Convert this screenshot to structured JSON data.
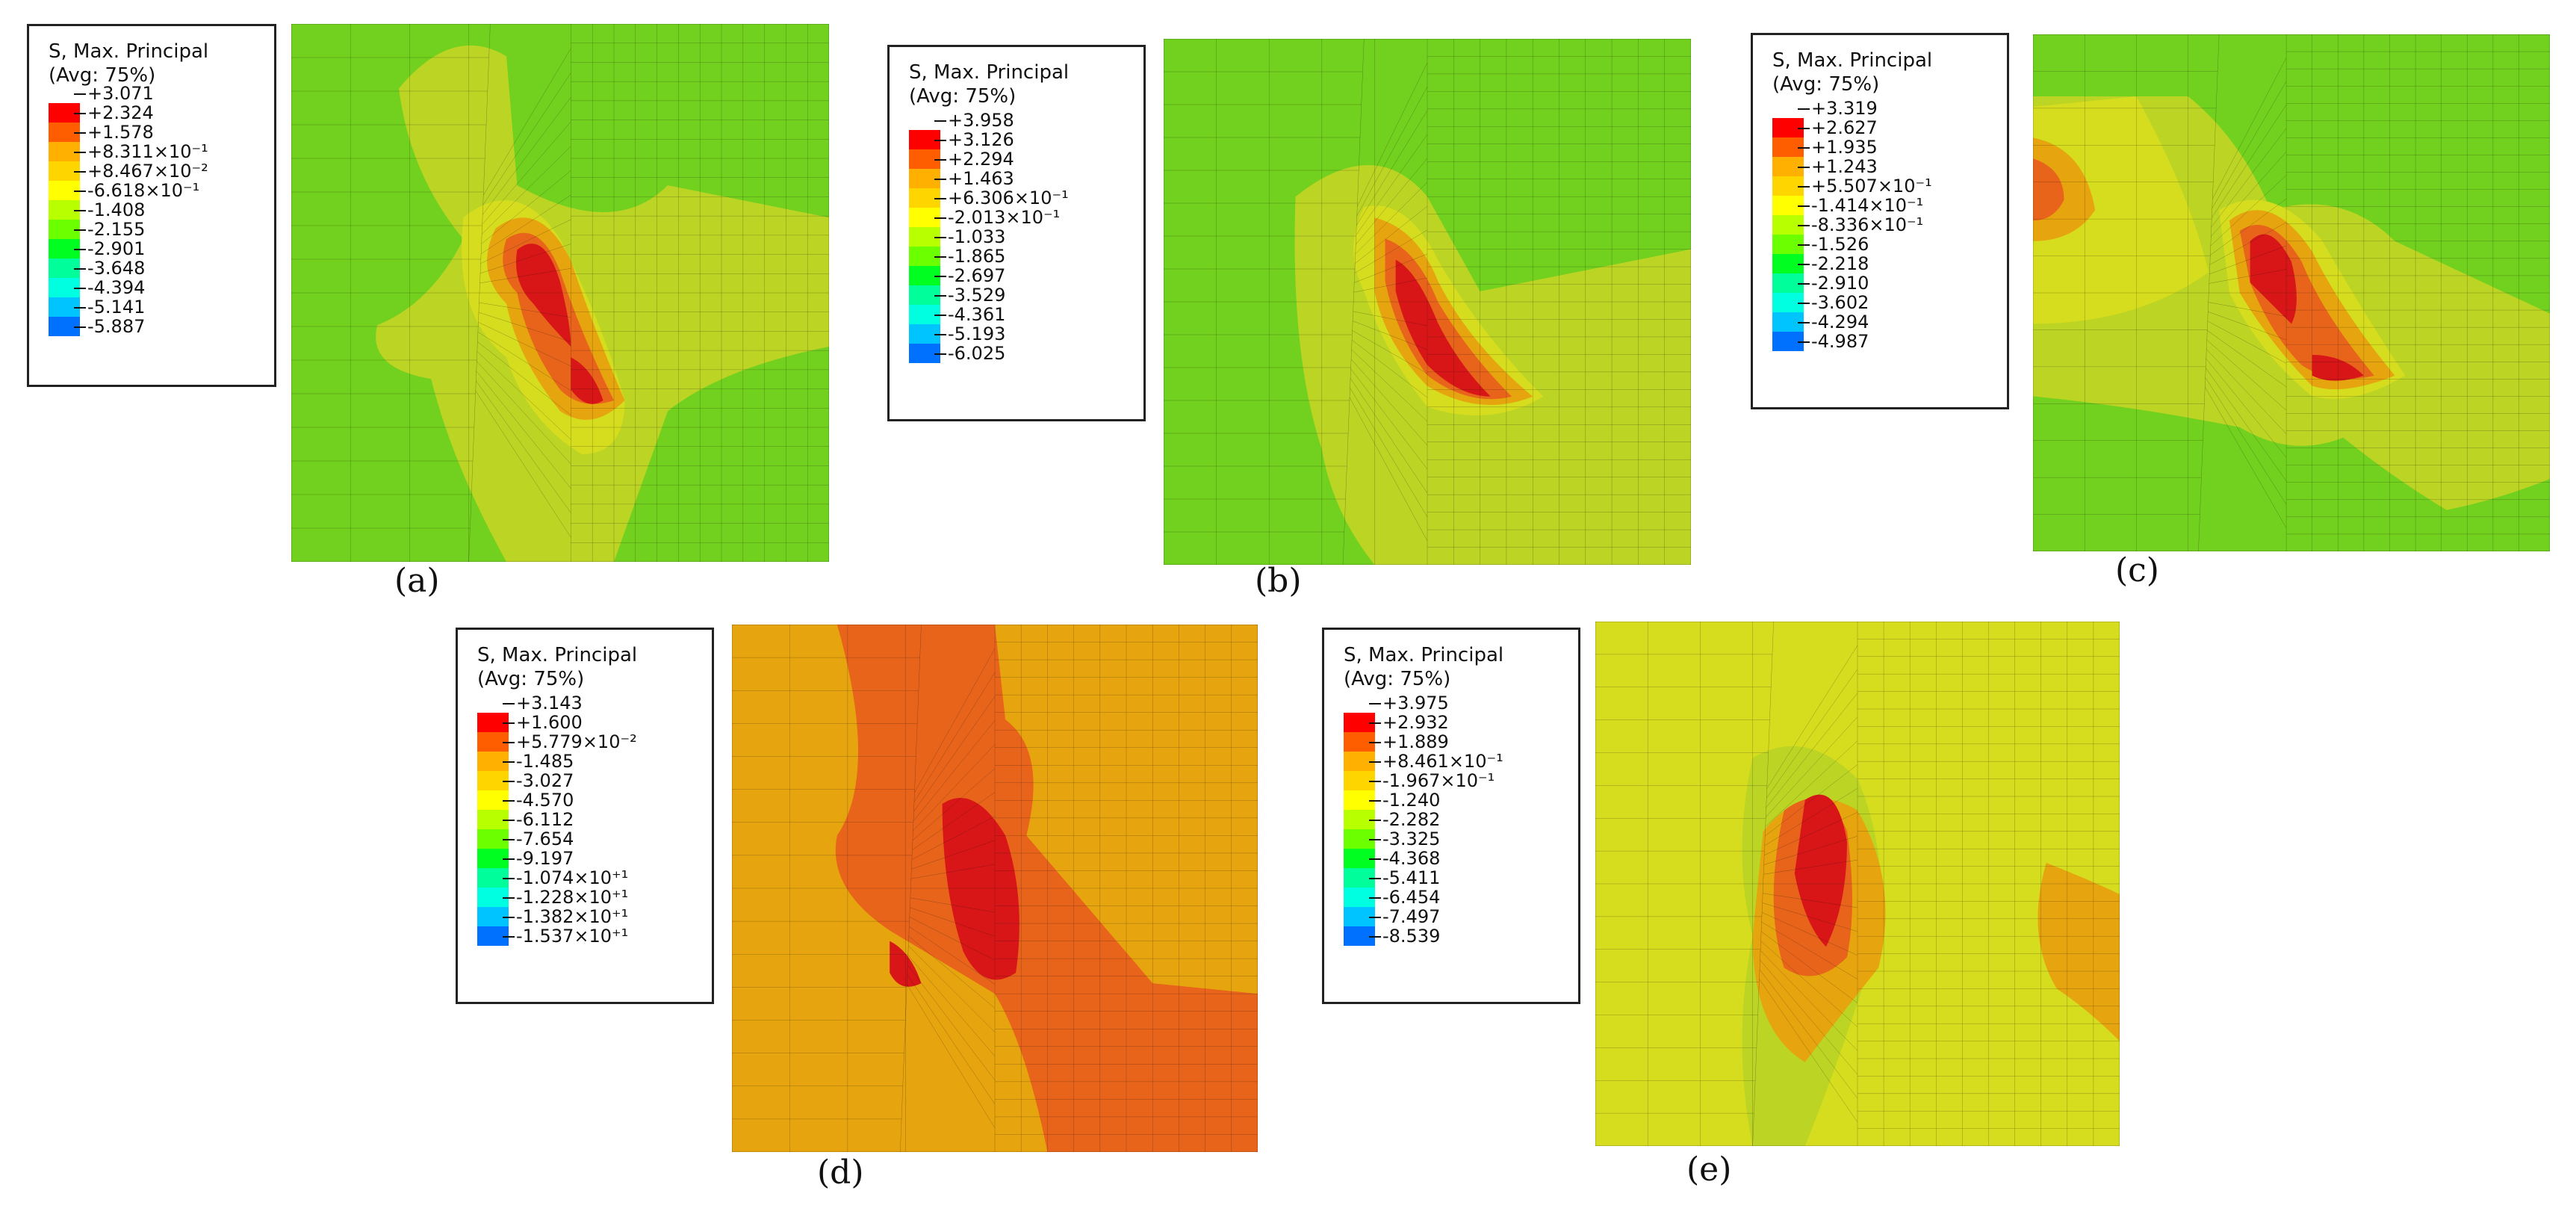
{
  "colors": {
    "green": "#72d01e",
    "yellowgreen": "#bcd424",
    "yellow": "#d6dc1e",
    "orange": "#e6a40f",
    "darkorange": "#e8641b",
    "red": "#d81617",
    "mesh": "#111111",
    "palette": [
      "#ff0000",
      "#ff5e00",
      "#ffb000",
      "#ffd500",
      "#ffff00",
      "#b8ff00",
      "#6cff00",
      "#00ff20",
      "#00ff9a",
      "#00ffe0",
      "#00c4ff",
      "#0070ff",
      "#0000ff"
    ]
  },
  "panels": [
    {
      "id": "a",
      "caption": "(a)",
      "legend": {
        "title": "S, Max. Principal",
        "avg": "(Avg: 75%)",
        "values": [
          "+3.071",
          "+2.324",
          "+1.578",
          "+8.311×10⁻¹",
          "+8.467×10⁻²",
          "-6.618×10⁻¹",
          "-1.408",
          "-2.155",
          "-2.901",
          "-3.648",
          "-4.394",
          "-5.141",
          "-5.887"
        ]
      },
      "contour": {
        "background": "green",
        "hotspot_row_fraction": 0.45
      }
    },
    {
      "id": "b",
      "caption": "(b)",
      "legend": {
        "title": "S, Max. Principal",
        "avg": "(Avg: 75%)",
        "values": [
          "+3.958",
          "+3.126",
          "+2.294",
          "+1.463",
          "+6.306×10⁻¹",
          "-2.013×10⁻¹",
          "-1.033",
          "-1.865",
          "-2.697",
          "-3.529",
          "-4.361",
          "-5.193",
          "-6.025"
        ]
      },
      "contour": {
        "background": "green",
        "hotspot_row_fraction": 0.5
      }
    },
    {
      "id": "c",
      "caption": "(c)",
      "legend": {
        "title": "S, Max. Principal",
        "avg": "(Avg: 75%)",
        "values": [
          "+3.319",
          "+2.627",
          "+1.935",
          "+1.243",
          "+5.507×10⁻¹",
          "-1.414×10⁻¹",
          "-8.336×10⁻¹",
          "-1.526",
          "-2.218",
          "-2.910",
          "-3.602",
          "-4.294",
          "-4.987"
        ]
      },
      "contour": {
        "background": "green",
        "hotspot_row_fraction": 0.45
      }
    },
    {
      "id": "d",
      "caption": "(d)",
      "legend": {
        "title": "S, Max. Principal",
        "avg": "(Avg: 75%)",
        "values": [
          "+3.143",
          "+1.600",
          "+5.779×10⁻²",
          "-1.485",
          "-3.027",
          "-4.570",
          "-6.112",
          "-7.654",
          "-9.197",
          "-1.074×10⁺¹",
          "-1.228×10⁺¹",
          "-1.382×10⁺¹",
          "-1.537×10⁺¹"
        ]
      },
      "contour": {
        "background": "orange",
        "hotspot_row_fraction": 0.45
      }
    },
    {
      "id": "e",
      "caption": "(e)",
      "legend": {
        "title": "S, Max. Principal",
        "avg": "(Avg: 75%)",
        "values": [
          "+3.975",
          "+2.932",
          "+1.889",
          "+8.461×10⁻¹",
          "-1.967×10⁻¹",
          "-1.240",
          "-2.282",
          "-3.325",
          "-4.368",
          "-5.411",
          "-6.454",
          "-7.497",
          "-8.539"
        ]
      },
      "contour": {
        "background": "yellow",
        "hotspot_row_fraction": 0.4
      }
    }
  ]
}
